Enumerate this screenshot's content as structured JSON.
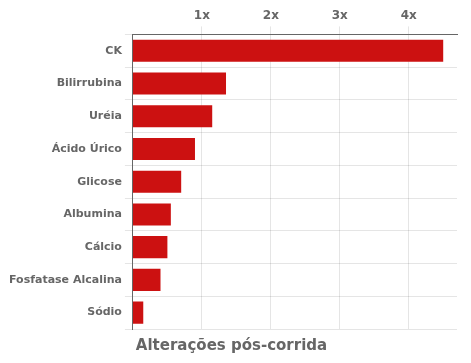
{
  "chart_data": {
    "type": "bar",
    "orientation": "horizontal",
    "title": "Alterações pós-corrida",
    "categories": [
      "CK",
      "Bilirrubina",
      "Uréia",
      "Ácido Úrico",
      "Glicose",
      "Albumina",
      "Cálcio",
      "Fosfatase Alcalina",
      "Sódio"
    ],
    "values": [
      4.5,
      1.35,
      1.15,
      0.9,
      0.7,
      0.55,
      0.5,
      0.4,
      0.15
    ],
    "color": "#cc1111",
    "xlim": [
      0,
      4.7
    ],
    "xticks": [
      {
        "value": 1,
        "label": "1x"
      },
      {
        "value": 2,
        "label": "2x"
      },
      {
        "value": 3,
        "label": "3x"
      },
      {
        "value": 4,
        "label": "4x"
      }
    ],
    "grid": true
  }
}
